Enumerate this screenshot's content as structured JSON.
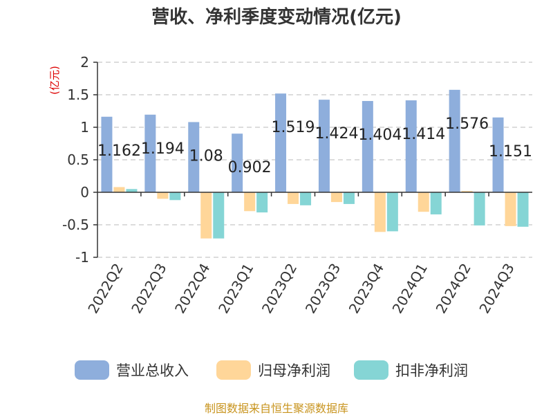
{
  "chart_data": {
    "type": "bar",
    "title": "营收、净利季度变动情况(亿元)",
    "unit_label": "(亿元)",
    "ylim": [
      -1,
      2
    ],
    "yticks": [
      "2",
      "1.5",
      "1",
      "0.5",
      "0",
      "-0.5",
      "-1"
    ],
    "ytick_values": [
      2,
      1.5,
      1,
      0.5,
      0,
      -0.5,
      -1
    ],
    "grid": true,
    "legend_position": "bottom",
    "categories": [
      "2022Q2",
      "2022Q3",
      "2022Q4",
      "2023Q1",
      "2023Q2",
      "2023Q3",
      "2023Q4",
      "2024Q1",
      "2024Q2",
      "2024Q3"
    ],
    "series": [
      {
        "name": "营业总收入",
        "color": "#8eaedc",
        "values": [
          1.162,
          1.194,
          1.08,
          0.902,
          1.519,
          1.424,
          1.404,
          1.414,
          1.576,
          1.151
        ],
        "labels": [
          "1.162",
          "1.194",
          "1.08",
          "0.902",
          "1.519",
          "1.424",
          "1.404",
          "1.414",
          "1.576",
          "1.151"
        ]
      },
      {
        "name": "归母净利润",
        "color": "#ffd699",
        "values": [
          0.08,
          -0.1,
          -0.71,
          -0.29,
          -0.18,
          -0.15,
          -0.61,
          -0.3,
          0.02,
          -0.52
        ]
      },
      {
        "name": "扣非净利润",
        "color": "#85d5d5",
        "values": [
          0.05,
          -0.12,
          -0.71,
          -0.31,
          -0.2,
          -0.18,
          -0.6,
          -0.34,
          -0.51,
          -0.53
        ]
      }
    ]
  },
  "footer": {
    "source": "制图数据来自恒生聚源数据库"
  }
}
